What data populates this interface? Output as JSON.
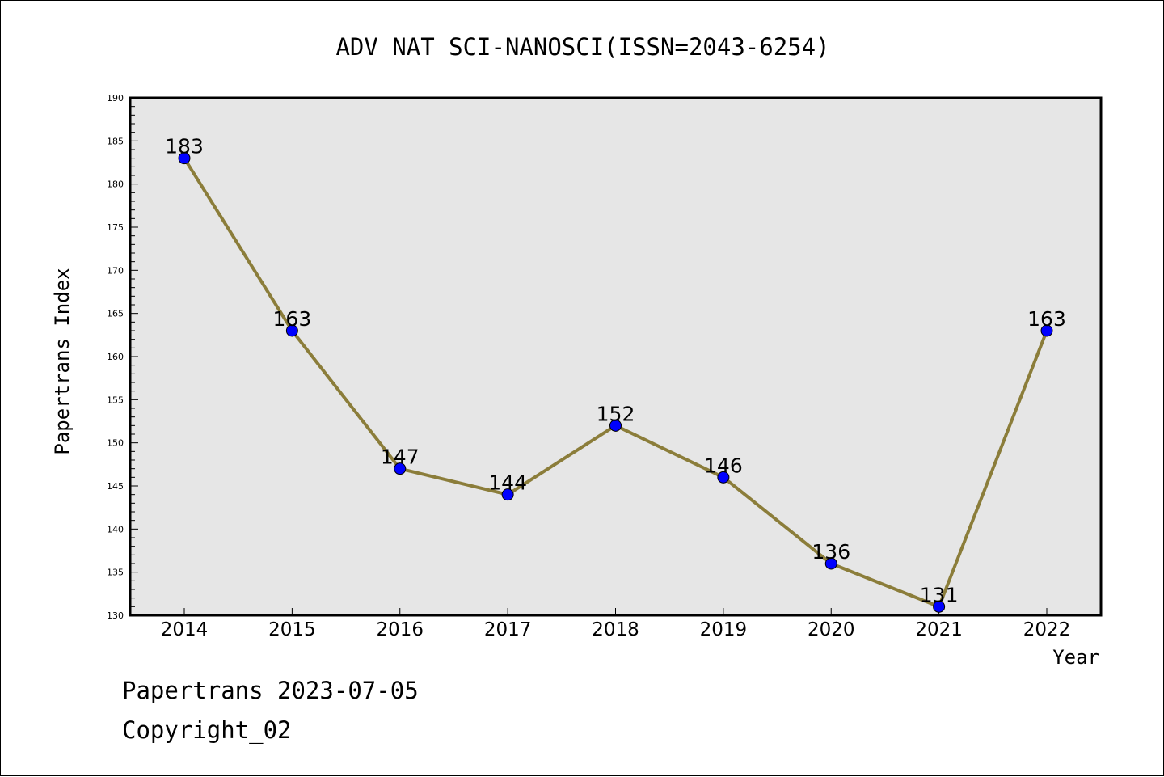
{
  "chart_data": {
    "type": "line",
    "title": "ADV NAT SCI-NANOSCI(ISSN=2043-6254)",
    "xlabel": "Year",
    "ylabel": "Papertrans Index",
    "categories": [
      "2014",
      "2015",
      "2016",
      "2017",
      "2018",
      "2019",
      "2020",
      "2021",
      "2022"
    ],
    "series": [
      {
        "values": [
          183,
          163,
          147,
          144,
          152,
          146,
          136,
          131,
          163
        ]
      }
    ],
    "ylim": [
      130,
      190
    ],
    "yticks": [
      130,
      135,
      140,
      145,
      150,
      155,
      160,
      165,
      170,
      175,
      180,
      185,
      190
    ],
    "grid": false,
    "colors": {
      "line": "#8B7D3A",
      "marker": "#0000FF",
      "plot_bg": "#E6E6E6"
    }
  },
  "footer": {
    "line1": "Papertrans 2023-07-05",
    "line2": "Copyright_02"
  }
}
